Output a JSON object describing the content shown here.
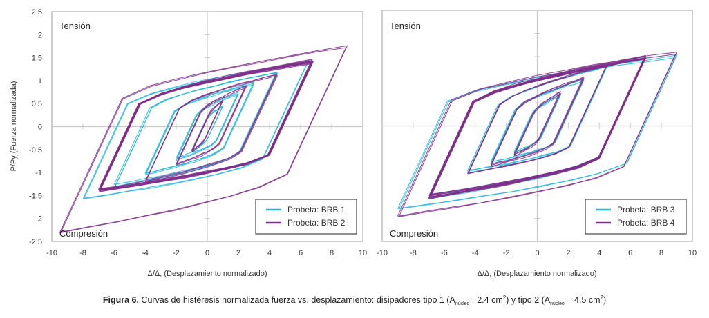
{
  "caption": {
    "figure_label": "Figura 6.",
    "text_a": " Curvas de histéresis normalizada fuerza vs. desplazamiento: disipadores tipo 1 (A",
    "sub1": "núcleo",
    "text_b": "= 2.4 cm",
    "sup1": "2",
    "text_c": ") y tipo 2 (A",
    "sub2": "núcleo",
    "text_d": " = 4.5 cm",
    "sup2": "2",
    "text_e": ")"
  },
  "colors": {
    "series_a": "#22b6de",
    "series_b": "#7f2f8a",
    "axis": "#c8c8c8",
    "frame": "#bdbdbd"
  },
  "chart_data": [
    {
      "type": "line",
      "subtype": "hysteresis",
      "title": "",
      "xlabel": "Δ/Δ, (Desplazamiento normalizado)",
      "ylabel": "P/Py (Fuerza normalizada)",
      "xlim": [
        -10,
        10
      ],
      "ylim": [
        -2.5,
        2.5
      ],
      "xticks": [
        -10,
        -8,
        -6,
        -4,
        -2,
        0,
        2,
        4,
        6,
        8,
        10
      ],
      "yticks": [
        2.5,
        2,
        1.5,
        1,
        0.5,
        0,
        -0.5,
        -1,
        -1.5,
        -2,
        -2.5
      ],
      "show_yticks": true,
      "grid": false,
      "annotations": [
        "Tensión",
        "Compresión"
      ],
      "legend_position": "bottom-right",
      "series": [
        {
          "name": "Probeta: BRB 1",
          "color_key": "series_a",
          "loops": [
            {
              "dmax": 1.0,
              "dmin": -1.0,
              "pmax": 0.45,
              "pmin": -0.55,
              "reps": 3
            },
            {
              "dmax": 2.0,
              "dmin": -2.0,
              "pmax": 0.75,
              "pmin": -0.7,
              "reps": 3
            },
            {
              "dmax": 3.0,
              "dmin": -4.0,
              "pmax": 0.95,
              "pmin": -1.05,
              "reps": 3
            },
            {
              "dmax": 4.5,
              "dmin": -6.0,
              "pmax": 1.2,
              "pmin": -1.3,
              "reps": 3
            },
            {
              "dmax": 6.5,
              "dmin": -8.0,
              "pmax": 1.4,
              "pmin": -1.55,
              "reps": 2
            }
          ]
        },
        {
          "name": "Probeta: BRB 2",
          "color_key": "series_b",
          "loops": [
            {
              "dmax": 1.0,
              "dmin": -1.0,
              "pmax": 0.55,
              "pmin": -0.55,
              "reps": 3
            },
            {
              "dmax": 2.5,
              "dmin": -2.0,
              "pmax": 0.9,
              "pmin": -0.85,
              "reps": 3
            },
            {
              "dmax": 4.5,
              "dmin": -4.0,
              "pmax": 1.15,
              "pmin": -1.2,
              "reps": 3
            },
            {
              "dmax": 6.8,
              "dmin": -7.0,
              "pmax": 1.45,
              "pmin": -1.4,
              "reps": 14
            },
            {
              "dmax": 9.0,
              "dmin": -9.5,
              "pmax": 1.75,
              "pmin": -2.3,
              "reps": 2
            }
          ]
        }
      ]
    },
    {
      "type": "line",
      "subtype": "hysteresis",
      "title": "",
      "xlabel": "Δ/Δ, (Desplazamiento normalizado)",
      "ylabel": "",
      "xlim": [
        -10,
        10
      ],
      "ylim": [
        -2.5,
        2.5
      ],
      "xticks": [
        -10,
        -8,
        -6,
        -4,
        -2,
        0,
        2,
        4,
        6,
        8,
        10
      ],
      "yticks": [],
      "show_yticks": false,
      "grid": false,
      "annotations": [
        "Tensión",
        "Compresión"
      ],
      "legend_position": "bottom-right",
      "series": [
        {
          "name": "Probeta: BRB 3",
          "color_key": "series_a",
          "loops": [
            {
              "dmax": 1.5,
              "dmin": -1.5,
              "pmax": 0.7,
              "pmin": -0.6,
              "reps": 3
            },
            {
              "dmax": 3.0,
              "dmin": -3.0,
              "pmax": 1.0,
              "pmin": -0.8,
              "reps": 3
            },
            {
              "dmax": 4.5,
              "dmin": -4.5,
              "pmax": 1.3,
              "pmin": -1.0,
              "reps": 3
            },
            {
              "dmax": 7.0,
              "dmin": -7.0,
              "pmax": 1.45,
              "pmin": -1.55,
              "reps": 3
            },
            {
              "dmax": 9.0,
              "dmin": -9.0,
              "pmax": 1.5,
              "pmin": -1.8,
              "reps": 2
            }
          ]
        },
        {
          "name": "Probeta: BRB 4",
          "color_key": "series_b",
          "loops": [
            {
              "dmax": 1.5,
              "dmin": -1.5,
              "pmax": 0.75,
              "pmin": -0.65,
              "reps": 3
            },
            {
              "dmax": 3.0,
              "dmin": -3.0,
              "pmax": 1.05,
              "pmin": -0.85,
              "reps": 3
            },
            {
              "dmax": 4.5,
              "dmin": -4.5,
              "pmax": 1.35,
              "pmin": -1.05,
              "reps": 3
            },
            {
              "dmax": 7.0,
              "dmin": -7.0,
              "pmax": 1.5,
              "pmin": -1.55,
              "reps": 14
            },
            {
              "dmax": 9.0,
              "dmin": -9.0,
              "pmax": 1.62,
              "pmin": -1.95,
              "reps": 2
            }
          ]
        }
      ]
    }
  ]
}
